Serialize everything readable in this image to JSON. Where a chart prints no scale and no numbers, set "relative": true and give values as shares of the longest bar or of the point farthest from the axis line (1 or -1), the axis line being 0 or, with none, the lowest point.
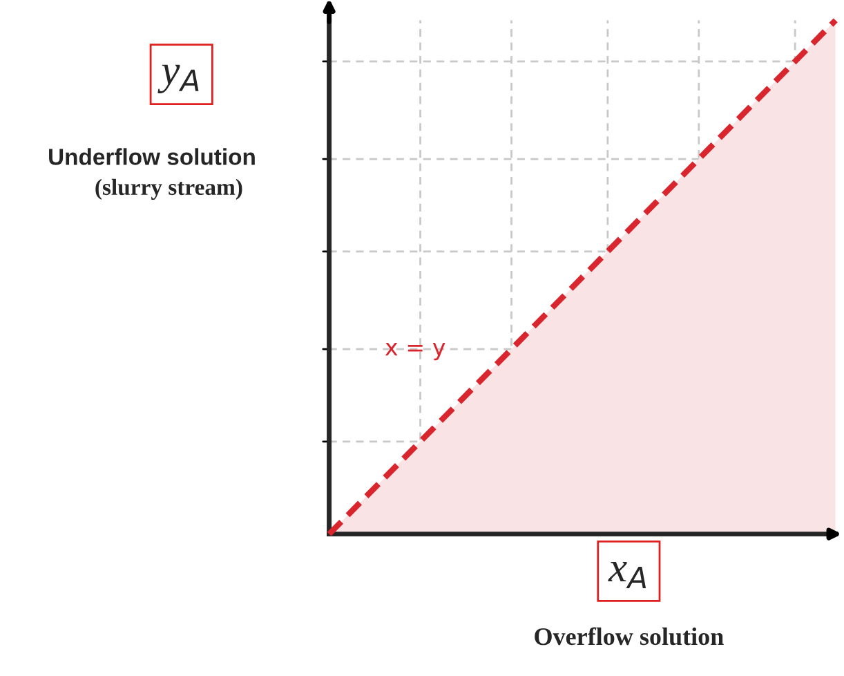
{
  "chart_data": {
    "type": "area",
    "relative": true,
    "categories": [
      null,
      null
    ],
    "series": [
      {
        "color": "#d9262e",
        "line_style": "dashed",
        "values": [
          0,
          1
        ]
      }
    ],
    "ref_lines": [
      {
        "axis": "y",
        "value": 0.18,
        "color": "#c8c8c8",
        "line_style": "dashed"
      },
      {
        "axis": "y",
        "value": 0.36,
        "color": "#c8c8c8",
        "line_style": "dashed"
      },
      {
        "axis": "y",
        "value": 0.55,
        "color": "#c8c8c8",
        "line_style": "dashed"
      },
      {
        "axis": "y",
        "value": 0.73,
        "color": "#c8c8c8",
        "line_style": "dashed"
      },
      {
        "axis": "y",
        "value": 0.92,
        "color": "#c8c8c8",
        "line_style": "dashed"
      }
    ],
    "xlabel": "x$_{A}$",
    "ylabel": "y$_{A}$",
    "annotations": [
      "x = y",
      "Underflow solution",
      "(slurry stream)",
      "Overflow solution"
    ],
    "marker": "none"
  }
}
